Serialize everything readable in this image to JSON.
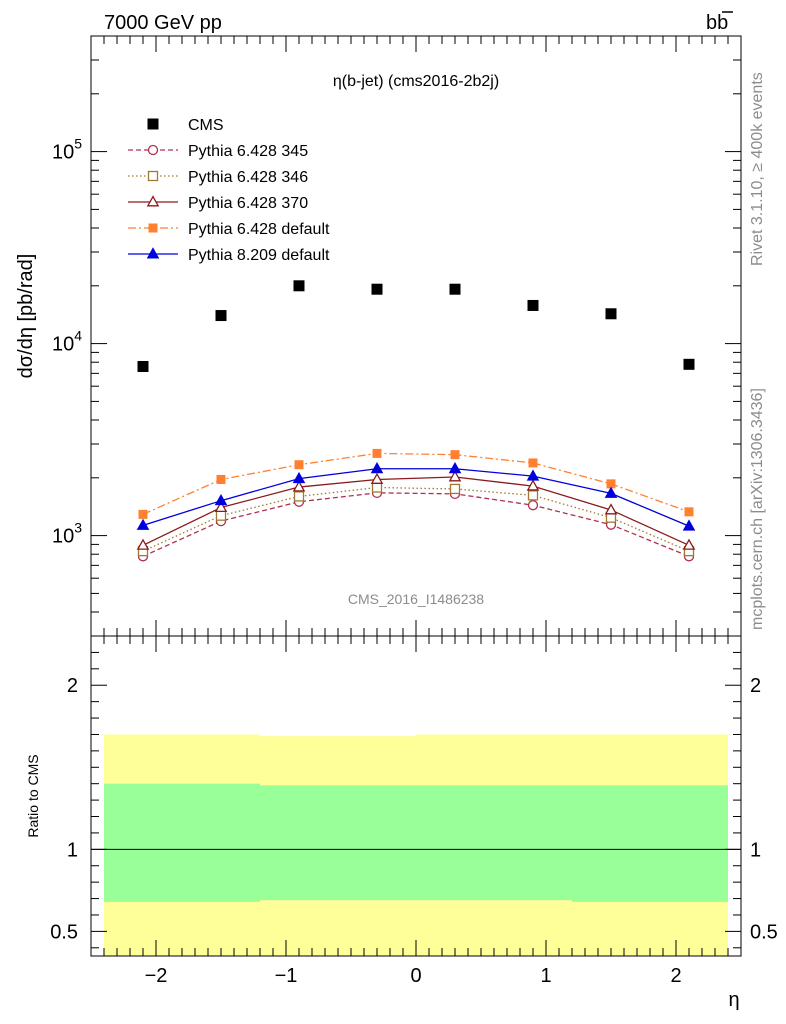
{
  "header": {
    "left": "7000 GeV pp",
    "right": "b",
    "right_bar": "b"
  },
  "side_text": {
    "rivet": "Rivet 3.1.10, ≥ 400k events",
    "mcplots": "mcplots.cern.ch [arXiv:1306.3436]"
  },
  "chart_data": {
    "type": "scatter",
    "title": "η(b-jet) (cms2016-2b2j)",
    "watermark": "CMS_2016_I1486238",
    "xlabel": "η",
    "ylabel": "dσ/dη [pb/rad]",
    "ratio_ylabel": "Ratio to CMS",
    "xlim": [
      -2.5,
      2.5
    ],
    "ylim": [
      300,
      400000
    ],
    "ylog": true,
    "ratio_ylim": [
      0.35,
      2.3
    ],
    "x_ticks": [
      "−2",
      "−1",
      "0",
      "1",
      "2"
    ],
    "x_tick_values": [
      -2,
      -1,
      0,
      1,
      2
    ],
    "y_tick_exponents": [
      "3",
      "4",
      "5"
    ],
    "ratio_ticks": [
      "0.5",
      "1",
      "2"
    ],
    "ratio_tick_values": [
      0.5,
      1,
      2
    ],
    "x": [
      -2.1,
      -1.5,
      -0.9,
      -0.3,
      0.3,
      0.9,
      1.5,
      2.1
    ],
    "series": [
      {
        "name": "CMS",
        "color": "#000000",
        "marker": "square-filled",
        "line": "none",
        "values": [
          7600,
          14000,
          20000,
          19200,
          19200,
          15800,
          14300,
          7800
        ]
      },
      {
        "name": "Pythia 6.428 345",
        "color": "#b03050",
        "marker": "circle-open",
        "line": "dashed",
        "values": [
          780,
          1190,
          1500,
          1670,
          1650,
          1440,
          1140,
          780
        ]
      },
      {
        "name": "Pythia 6.428 346",
        "color": "#a07a30",
        "marker": "square-open",
        "line": "dotted",
        "values": [
          830,
          1270,
          1600,
          1780,
          1750,
          1620,
          1240,
          830
        ]
      },
      {
        "name": "Pythia 6.428 370",
        "color": "#8b1a1a",
        "marker": "triangle-open",
        "line": "solid",
        "values": [
          890,
          1400,
          1790,
          1960,
          2020,
          1810,
          1360,
          890
        ]
      },
      {
        "name": "Pythia 6.428 default",
        "color": "#ff8030",
        "marker": "square-filled",
        "line": "dashdot",
        "values": [
          1290,
          1960,
          2340,
          2680,
          2640,
          2390,
          1860,
          1330
        ]
      },
      {
        "name": "Pythia 8.209 default",
        "color": "#0000dd",
        "marker": "triangle-filled",
        "line": "solid",
        "values": [
          1130,
          1520,
          1980,
          2230,
          2230,
          2040,
          1660,
          1120
        ]
      }
    ],
    "ratio_bands": [
      {
        "x0": -2.4,
        "x1": -1.2,
        "outer": [
          0.68,
          1.7
        ],
        "inner": [
          0.68,
          1.4
        ]
      },
      {
        "x0": -1.2,
        "x1": 0.0,
        "outer": [
          0.69,
          1.69
        ],
        "inner": [
          0.69,
          1.39
        ]
      },
      {
        "x0": 0.0,
        "x1": 1.2,
        "outer": [
          0.69,
          1.7
        ],
        "inner": [
          0.69,
          1.39
        ]
      },
      {
        "x0": 1.2,
        "x1": 2.4,
        "outer": [
          0.68,
          1.7
        ],
        "inner": [
          0.68,
          1.39
        ]
      }
    ],
    "colors": {
      "band_outer": "#ffff99",
      "band_inner": "#99ff99"
    }
  }
}
